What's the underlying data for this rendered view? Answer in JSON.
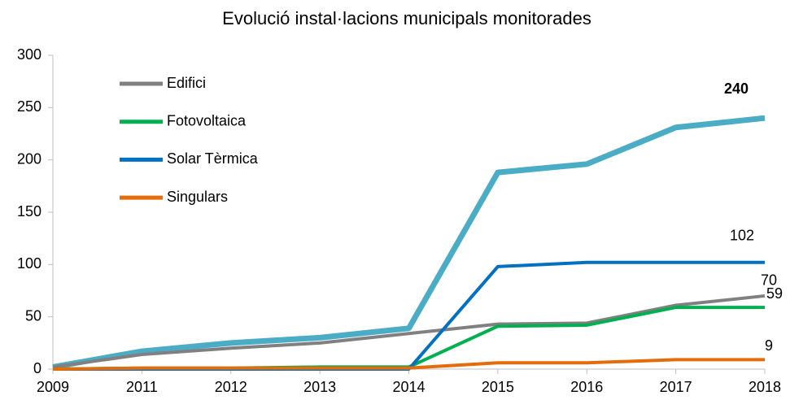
{
  "chart_data": {
    "type": "line",
    "title": "Evolució instal·lacions municipals monitorades",
    "categories": [
      "2009",
      "2011",
      "2012",
      "2013",
      "2014",
      "2015",
      "2016",
      "2017",
      "2018"
    ],
    "series": [
      {
        "color": "#4bacc6",
        "width": 7,
        "values": [
          2,
          17,
          25,
          30,
          39,
          188,
          196,
          231,
          240
        ],
        "label_last": true,
        "label_bold": true
      },
      {
        "name": "Edifici",
        "color": "#808080",
        "width": 4,
        "values": [
          2,
          14,
          20,
          25,
          34,
          43,
          44,
          61,
          70
        ],
        "label_last": true
      },
      {
        "name": "Fotovoltaica",
        "color": "#00b050",
        "width": 4,
        "values": [
          0,
          1,
          1,
          2,
          2,
          41,
          42,
          59,
          59
        ],
        "label_last": true
      },
      {
        "name": "Solar Tèrmica",
        "color": "#0070c0",
        "width": 4,
        "values": [
          0,
          0,
          0,
          0,
          0,
          98,
          102,
          102,
          102
        ],
        "label_last": true
      },
      {
        "name": "Singulars",
        "color": "#e46c0a",
        "width": 4,
        "values": [
          0,
          1,
          1,
          1,
          1,
          6,
          6,
          9,
          9
        ],
        "label_last": true
      }
    ],
    "ylim": [
      0,
      300
    ],
    "yticks": [
      0,
      50,
      100,
      150,
      200,
      250,
      300
    ],
    "grid": false
  }
}
